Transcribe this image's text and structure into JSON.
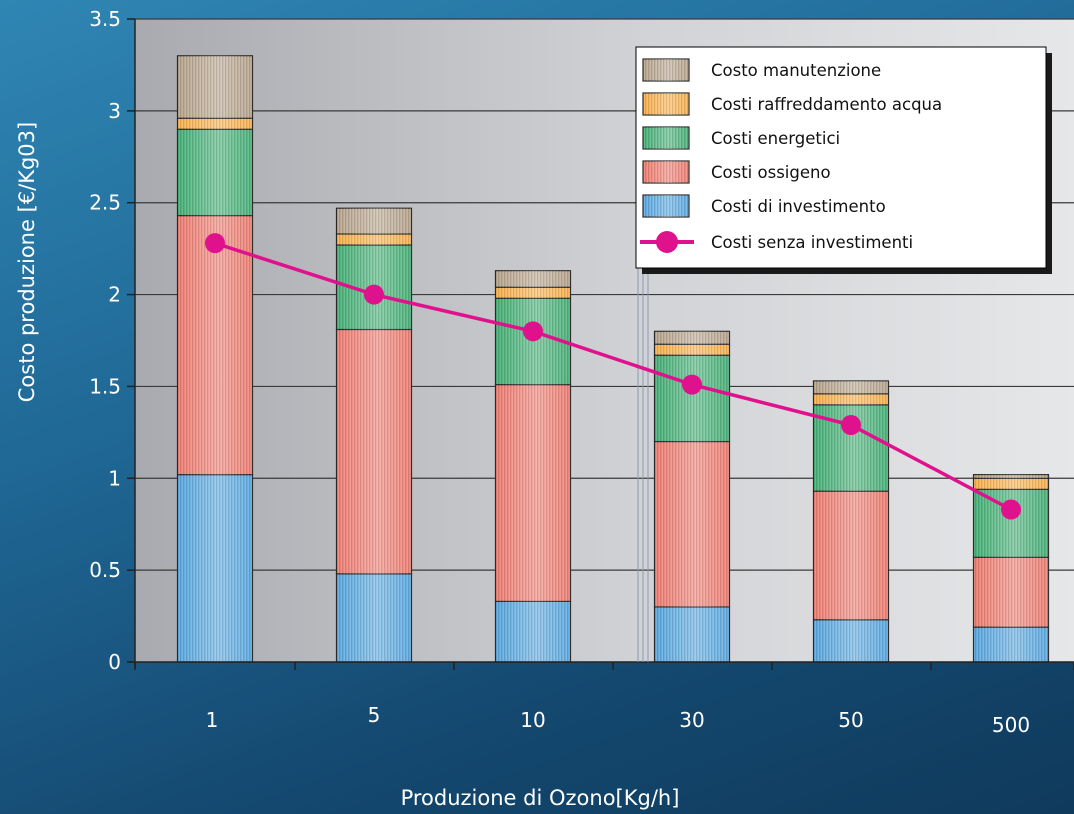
{
  "chart_data": {
    "type": "bar",
    "stacked": true,
    "categories": [
      "1",
      "5",
      "10",
      "30",
      "50",
      "500"
    ],
    "xlabel": "Produzione di Ozono[Kg/h]",
    "ylabel": "Costo produzione [€/Kg03]",
    "ylim": [
      0,
      3.5
    ],
    "yticks": [
      "0",
      "0.5",
      "1",
      "1.5",
      "2",
      "2.5",
      "3",
      "3.5"
    ],
    "grid": true,
    "legend_position": "top-right",
    "series": [
      {
        "name": "Costi di investimento",
        "kind": "bar",
        "color": "#5aa8e0",
        "values": [
          1.02,
          0.48,
          0.33,
          0.3,
          0.23,
          0.19
        ]
      },
      {
        "name": "Costi ossigeno",
        "kind": "bar",
        "color": "#ee7e72",
        "values": [
          1.41,
          1.33,
          1.18,
          0.9,
          0.7,
          0.38
        ]
      },
      {
        "name": "Costi energetici",
        "kind": "bar",
        "color": "#47b077",
        "values": [
          0.47,
          0.46,
          0.47,
          0.47,
          0.47,
          0.37
        ]
      },
      {
        "name": "Costi raffreddamento acqua",
        "kind": "bar",
        "color": "#f7b04e",
        "values": [
          0.06,
          0.06,
          0.06,
          0.06,
          0.06,
          0.06
        ]
      },
      {
        "name": "Costo manutenzione",
        "kind": "bar",
        "color": "#b7a48d",
        "values": [
          0.34,
          0.14,
          0.09,
          0.07,
          0.07,
          0.02
        ]
      },
      {
        "name": "Costi senza investimenti",
        "kind": "line",
        "color": "#e0118c",
        "values": [
          2.28,
          2.0,
          1.8,
          1.51,
          1.29,
          0.83
        ]
      }
    ],
    "legend_order": [
      "Costo manutenzione",
      "Costi raffreddamento acqua",
      "Costi energetici",
      "Costi ossigeno",
      "Costi di investimento",
      "Costi senza investimenti"
    ]
  }
}
